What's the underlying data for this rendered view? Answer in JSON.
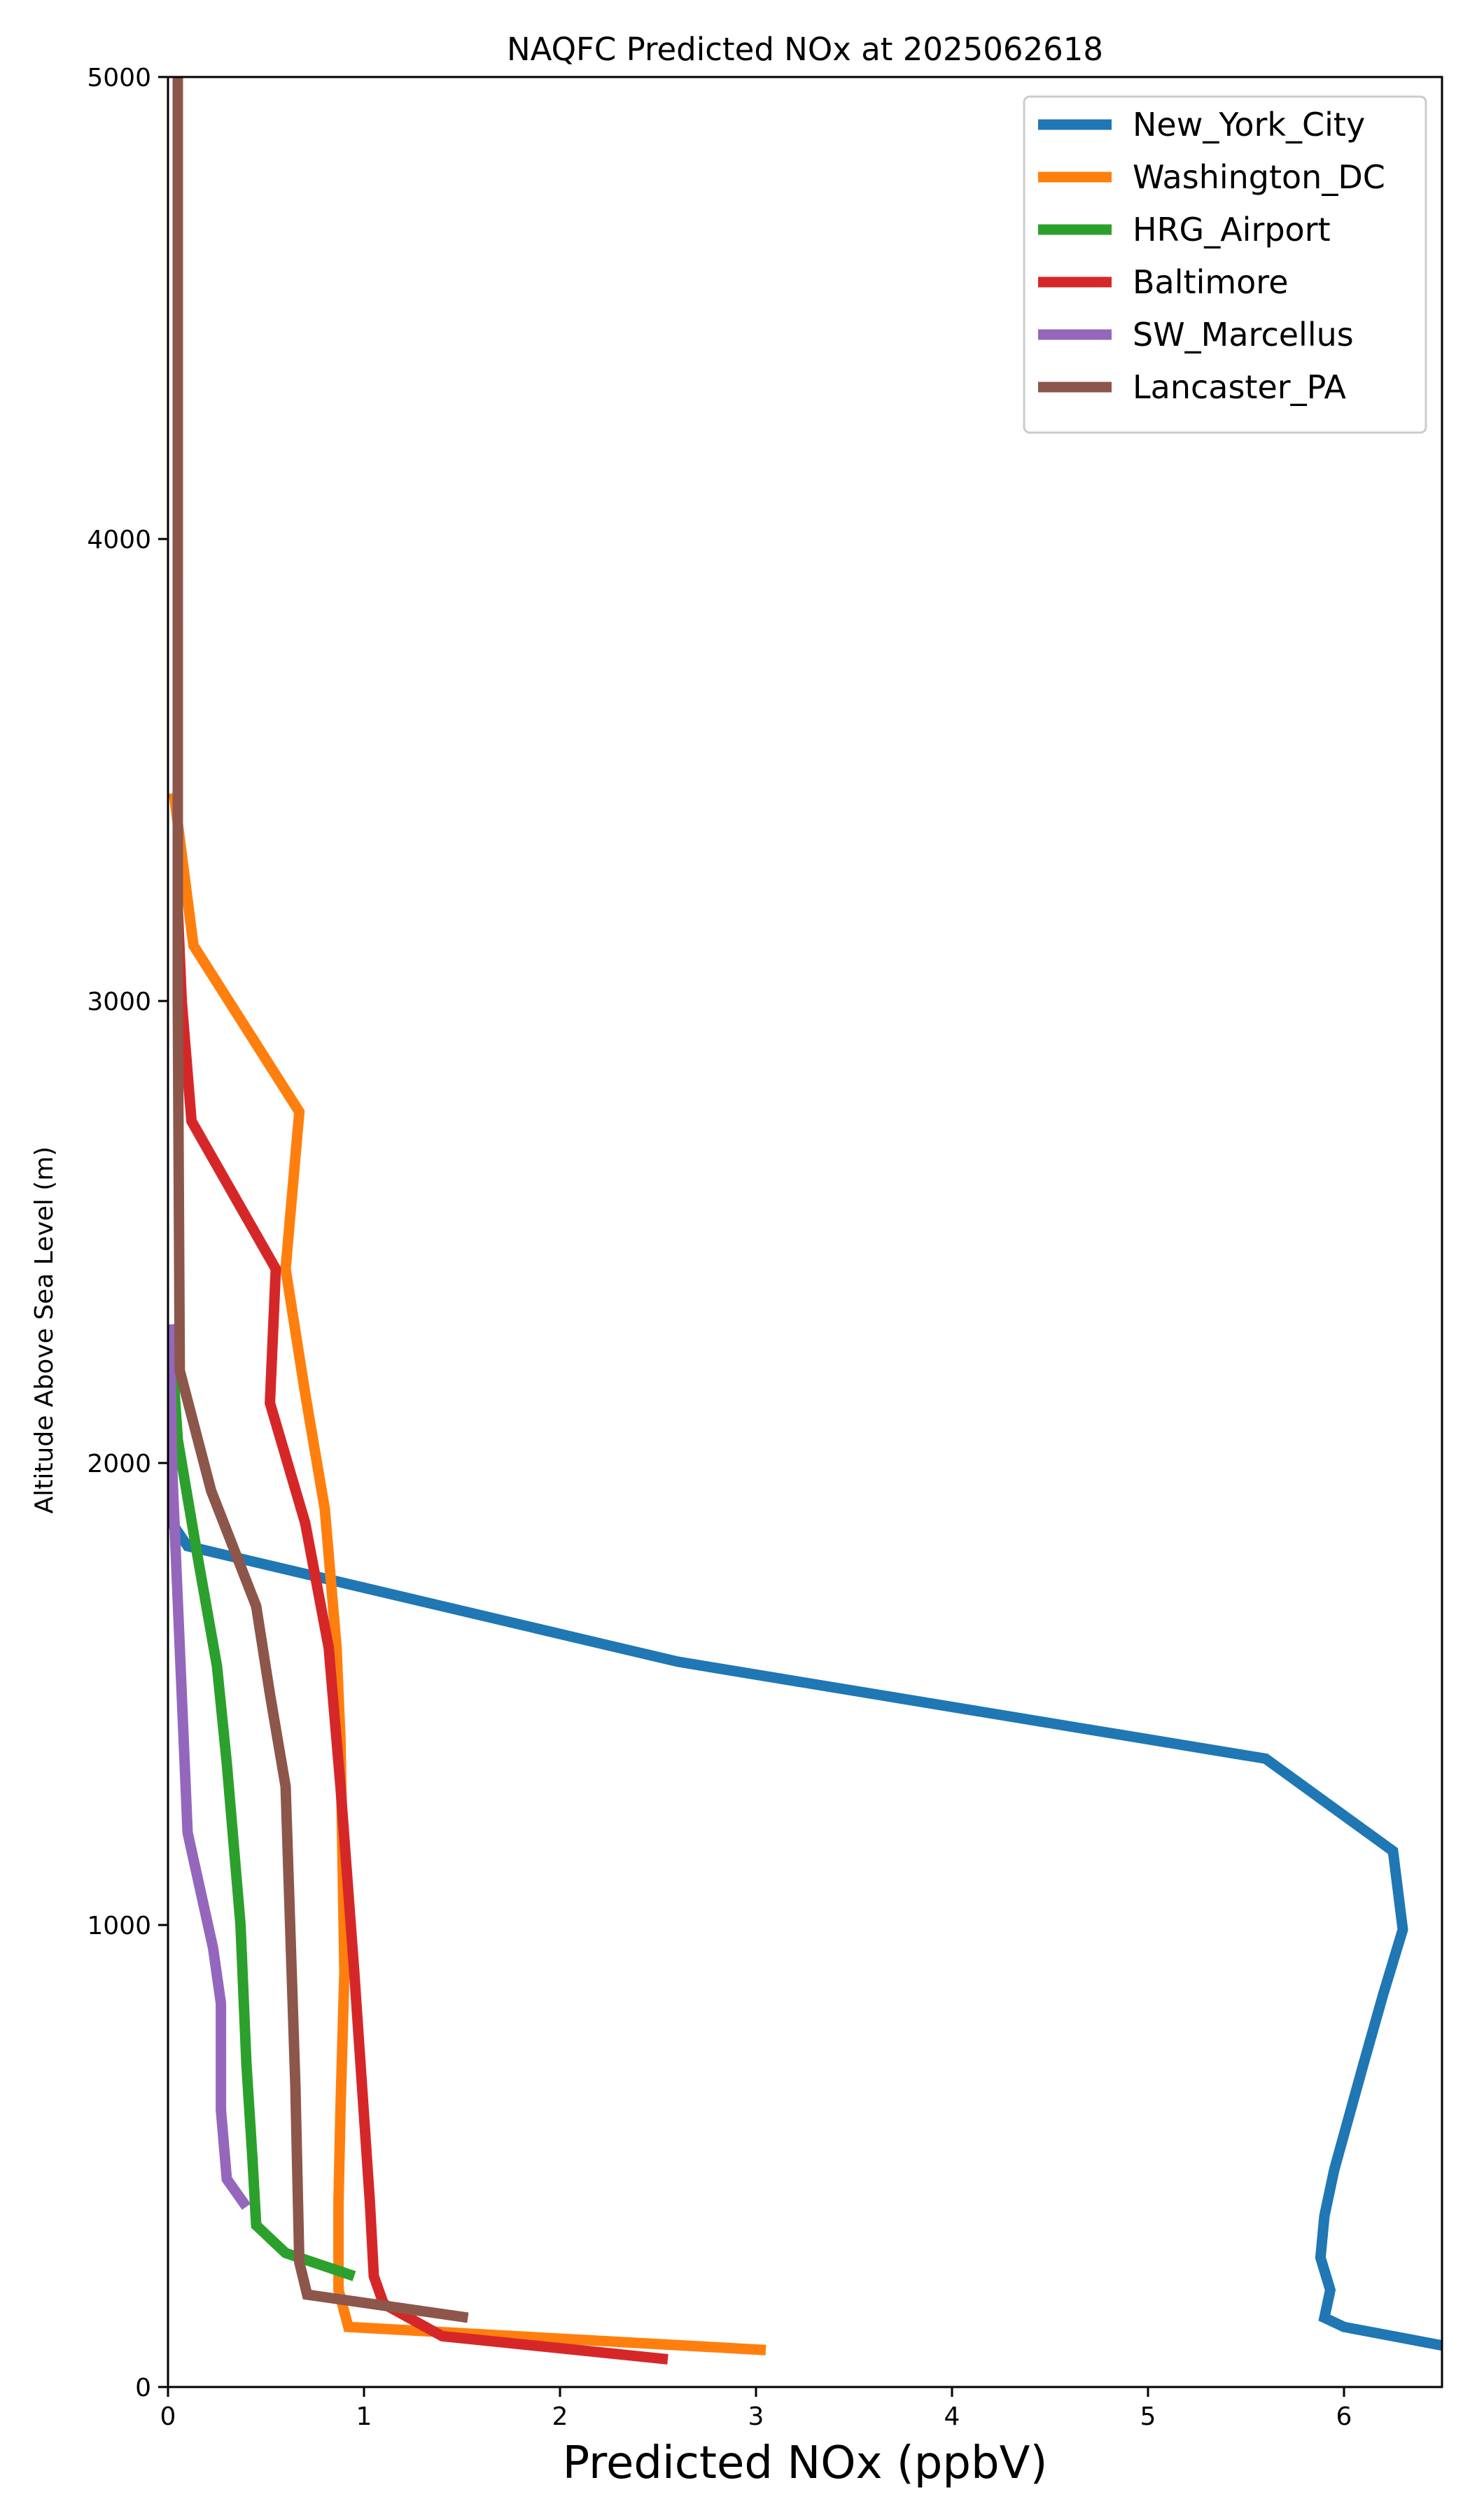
{
  "chart_data": {
    "type": "line",
    "title": "NAQFC Predicted NOx at 2025062618",
    "xlabel": "Predicted NOx (ppbV)",
    "ylabel": "Altitude Above Sea Level (m)",
    "xlim": [
      0,
      6.5
    ],
    "ylim": [
      0,
      5000
    ],
    "xticks": [
      0,
      1,
      2,
      3,
      4,
      5,
      6
    ],
    "yticks": [
      0,
      1000,
      2000,
      3000,
      4000,
      5000
    ],
    "grid": false,
    "legend_position": "top-right",
    "series": [
      {
        "name": "New_York_City",
        "color": "#1f77b4",
        "points": [
          [
            6.5,
            90
          ],
          [
            6.0,
            130
          ],
          [
            5.9,
            150
          ],
          [
            5.93,
            210
          ],
          [
            5.88,
            280
          ],
          [
            5.9,
            370
          ],
          [
            5.95,
            470
          ],
          [
            6.1,
            700
          ],
          [
            6.2,
            850
          ],
          [
            6.3,
            990
          ],
          [
            6.25,
            1160
          ],
          [
            5.6,
            1360
          ],
          [
            2.6,
            1570
          ],
          [
            0.1,
            1820
          ],
          [
            0.02,
            1870
          ],
          [
            0.02,
            2000
          ],
          [
            0.02,
            2200
          ]
        ]
      },
      {
        "name": "Washington_DC",
        "color": "#ff7f0e",
        "points": [
          [
            3.05,
            80
          ],
          [
            0.92,
            130
          ],
          [
            0.87,
            210
          ],
          [
            0.87,
            400
          ],
          [
            0.88,
            600
          ],
          [
            0.9,
            900
          ],
          [
            0.88,
            1400
          ],
          [
            0.86,
            1600
          ],
          [
            0.8,
            1900
          ],
          [
            0.7,
            2150
          ],
          [
            0.6,
            2420
          ],
          [
            0.67,
            2760
          ],
          [
            0.13,
            3120
          ],
          [
            0.03,
            3450
          ]
        ]
      },
      {
        "name": "HRG_Airport",
        "color": "#2ca02c",
        "points": [
          [
            0.95,
            240
          ],
          [
            0.6,
            290
          ],
          [
            0.45,
            350
          ],
          [
            0.43,
            500
          ],
          [
            0.4,
            700
          ],
          [
            0.37,
            1000
          ],
          [
            0.3,
            1350
          ],
          [
            0.25,
            1560
          ],
          [
            0.15,
            1800
          ],
          [
            0.05,
            2050
          ],
          [
            0.01,
            2300
          ]
        ]
      },
      {
        "name": "Baltimore",
        "color": "#d62728",
        "points": [
          [
            2.55,
            60
          ],
          [
            1.4,
            110
          ],
          [
            1.1,
            180
          ],
          [
            1.05,
            240
          ],
          [
            1.03,
            400
          ],
          [
            0.95,
            900
          ],
          [
            0.88,
            1300
          ],
          [
            0.82,
            1600
          ],
          [
            0.7,
            1870
          ],
          [
            0.52,
            2130
          ],
          [
            0.55,
            2420
          ],
          [
            0.12,
            2740
          ],
          [
            0.07,
            3000
          ],
          [
            0.05,
            3200
          ]
        ]
      },
      {
        "name": "SW_Marcellus",
        "color": "#9467bd",
        "points": [
          [
            0.4,
            390
          ],
          [
            0.3,
            450
          ],
          [
            0.27,
            600
          ],
          [
            0.27,
            830
          ],
          [
            0.23,
            950
          ],
          [
            0.1,
            1200
          ],
          [
            0.05,
            1700
          ],
          [
            0.02,
            2000
          ],
          [
            0.01,
            2300
          ]
        ]
      },
      {
        "name": "Lancaster_PA",
        "color": "#8c564b",
        "points": [
          [
            1.53,
            150
          ],
          [
            0.71,
            200
          ],
          [
            0.67,
            270
          ],
          [
            0.65,
            650
          ],
          [
            0.6,
            1300
          ],
          [
            0.52,
            1500
          ],
          [
            0.45,
            1690
          ],
          [
            0.22,
            1940
          ],
          [
            0.06,
            2200
          ],
          [
            0.05,
            3000
          ],
          [
            0.05,
            4000
          ],
          [
            0.05,
            5000
          ]
        ]
      }
    ]
  }
}
